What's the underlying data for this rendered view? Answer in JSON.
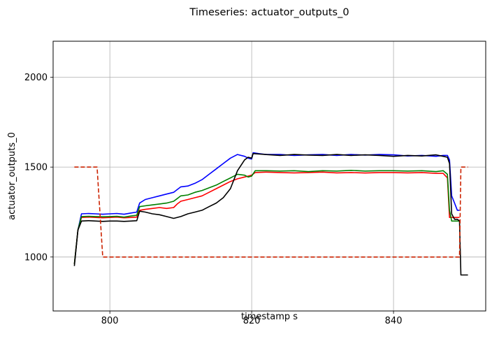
{
  "chart_data": {
    "type": "line",
    "title": "Timeseries: actuator_outputs_0",
    "xlabel": "timestamp s",
    "ylabel": "actuator_outputs_0",
    "xlim": [
      792,
      853
    ],
    "ylim": [
      700,
      2200
    ],
    "xticks": [
      800,
      820,
      840
    ],
    "yticks": [
      1000,
      1500,
      2000
    ],
    "grid": true,
    "series": [
      {
        "color": "#0000ff",
        "style": "solid",
        "x": [
          795.0,
          795.5,
          796.0,
          797.0,
          798.0,
          799.0,
          800.0,
          801.0,
          802.0,
          803.0,
          803.8,
          804.2,
          805.0,
          806.0,
          807.0,
          808.0,
          809.0,
          809.5,
          810.0,
          811.0,
          812.0,
          813.0,
          814.0,
          815.0,
          816.0,
          817.0,
          818.0,
          819.0,
          819.5,
          820.0,
          820.2,
          821.0,
          822.0,
          824.0,
          826.0,
          828.0,
          830.0,
          832.0,
          834.0,
          836.0,
          838.0,
          840.0,
          842.0,
          844.0,
          846.0,
          847.0,
          847.6,
          847.9,
          848.2,
          848.6,
          849.0,
          849.3
        ],
        "y": [
          960,
          1150,
          1240,
          1242,
          1240,
          1238,
          1240,
          1242,
          1238,
          1245,
          1250,
          1300,
          1320,
          1330,
          1340,
          1350,
          1360,
          1375,
          1390,
          1395,
          1410,
          1430,
          1460,
          1490,
          1520,
          1550,
          1570,
          1560,
          1550,
          1545,
          1580,
          1575,
          1570,
          1570,
          1565,
          1568,
          1570,
          1565,
          1570,
          1567,
          1570,
          1568,
          1562,
          1565,
          1560,
          1565,
          1565,
          1540,
          1340,
          1300,
          1260,
          1260
        ]
      },
      {
        "color": "#ff0000",
        "style": "solid",
        "x": [
          795.0,
          795.5,
          796.0,
          797.0,
          798.0,
          799.0,
          800.0,
          801.0,
          802.0,
          803.0,
          803.8,
          804.2,
          805.0,
          806.0,
          807.0,
          808.0,
          809.0,
          809.5,
          810.0,
          811.0,
          812.0,
          813.0,
          814.0,
          815.0,
          816.0,
          817.0,
          818.0,
          819.0,
          819.5,
          820.0,
          820.5,
          822.0,
          824.0,
          826.0,
          828.0,
          830.0,
          832.0,
          834.0,
          836.0,
          838.0,
          840.0,
          842.0,
          844.0,
          846.0,
          847.0,
          847.6,
          847.9,
          848.2,
          848.6,
          849.0,
          849.3
        ],
        "y": [
          960,
          1150,
          1220,
          1222,
          1220,
          1218,
          1220,
          1222,
          1218,
          1220,
          1222,
          1260,
          1265,
          1270,
          1275,
          1270,
          1275,
          1295,
          1310,
          1320,
          1330,
          1340,
          1360,
          1380,
          1400,
          1420,
          1435,
          1445,
          1450,
          1455,
          1470,
          1472,
          1470,
          1468,
          1470,
          1472,
          1468,
          1470,
          1467,
          1470,
          1470,
          1468,
          1470,
          1465,
          1465,
          1440,
          1220,
          1220,
          1220,
          1220,
          1220
        ]
      },
      {
        "color": "#008000",
        "style": "solid",
        "x": [
          795.0,
          795.5,
          796.0,
          797.0,
          798.0,
          799.0,
          800.0,
          801.0,
          802.0,
          803.0,
          803.8,
          804.2,
          805.0,
          806.0,
          807.0,
          808.0,
          809.0,
          809.5,
          810.0,
          811.0,
          812.0,
          813.0,
          814.0,
          815.0,
          816.0,
          817.0,
          818.0,
          819.0,
          819.5,
          820.0,
          820.5,
          822.0,
          824.0,
          826.0,
          828.0,
          830.0,
          832.0,
          834.0,
          836.0,
          838.0,
          840.0,
          842.0,
          844.0,
          846.0,
          847.0,
          847.6,
          847.9,
          848.2,
          848.6,
          849.0,
          849.3
        ],
        "y": [
          960,
          1150,
          1225,
          1226,
          1225,
          1224,
          1225,
          1226,
          1222,
          1228,
          1232,
          1280,
          1285,
          1290,
          1295,
          1300,
          1310,
          1325,
          1340,
          1345,
          1360,
          1370,
          1385,
          1400,
          1420,
          1440,
          1460,
          1455,
          1445,
          1450,
          1480,
          1480,
          1478,
          1480,
          1475,
          1480,
          1478,
          1482,
          1478,
          1480,
          1480,
          1478,
          1480,
          1475,
          1480,
          1460,
          1260,
          1200,
          1200,
          1200,
          1200
        ]
      },
      {
        "color": "#000000",
        "style": "solid",
        "x": [
          795.0,
          795.5,
          796.0,
          797.0,
          798.0,
          799.0,
          800.0,
          801.0,
          802.0,
          803.0,
          803.8,
          804.2,
          805.0,
          806.0,
          807.0,
          808.0,
          809.0,
          810.0,
          811.0,
          812.0,
          813.0,
          814.0,
          815.0,
          816.0,
          817.0,
          818.0,
          819.0,
          819.5,
          820.0,
          820.2,
          822.0,
          824.0,
          826.0,
          828.0,
          830.0,
          832.0,
          834.0,
          836.0,
          838.0,
          840.0,
          842.0,
          844.0,
          846.0,
          847.0,
          847.6,
          847.9,
          848.2,
          848.6,
          849.0,
          849.3,
          849.5,
          849.6,
          850.0,
          850.5
        ],
        "y": [
          950,
          1150,
          1200,
          1202,
          1200,
          1198,
          1200,
          1200,
          1198,
          1200,
          1202,
          1255,
          1250,
          1240,
          1235,
          1225,
          1215,
          1225,
          1240,
          1250,
          1260,
          1280,
          1300,
          1330,
          1380,
          1480,
          1540,
          1555,
          1550,
          1575,
          1570,
          1565,
          1570,
          1567,
          1565,
          1570,
          1565,
          1568,
          1565,
          1560,
          1565,
          1562,
          1568,
          1560,
          1555,
          1520,
          1240,
          1210,
          1210,
          1200,
          900,
          900,
          900,
          900
        ]
      },
      {
        "color": "#cc2200",
        "style": "dashed",
        "x": [
          795.0,
          798.2,
          799.0,
          849.3,
          849.5,
          850.5
        ],
        "y": [
          1500,
          1500,
          1000,
          1000,
          1500,
          1500
        ]
      }
    ]
  }
}
